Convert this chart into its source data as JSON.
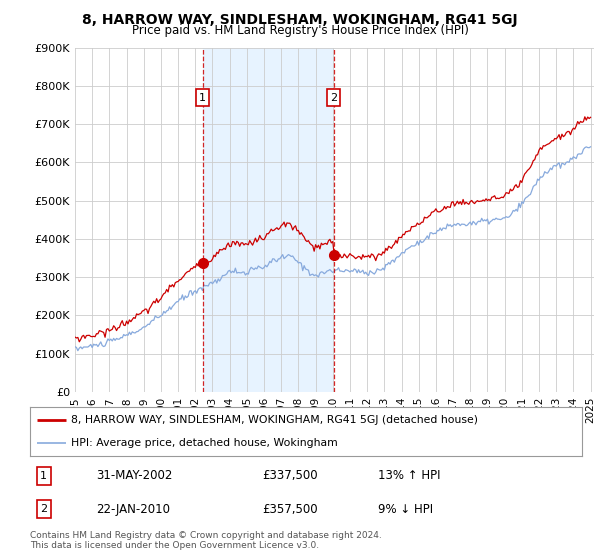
{
  "title": "8, HARROW WAY, SINDLESHAM, WOKINGHAM, RG41 5GJ",
  "subtitle": "Price paid vs. HM Land Registry's House Price Index (HPI)",
  "ylim": [
    0,
    900000
  ],
  "yticks": [
    0,
    100000,
    200000,
    300000,
    400000,
    500000,
    600000,
    700000,
    800000,
    900000
  ],
  "ytick_labels": [
    "£0",
    "£100K",
    "£200K",
    "£300K",
    "£400K",
    "£500K",
    "£600K",
    "£700K",
    "£800K",
    "£900K"
  ],
  "xlim_start": 1995.0,
  "xlim_end": 2025.2,
  "xtick_years": [
    1995,
    1996,
    1997,
    1998,
    1999,
    2000,
    2001,
    2002,
    2003,
    2004,
    2005,
    2006,
    2007,
    2008,
    2009,
    2010,
    2011,
    2012,
    2013,
    2014,
    2015,
    2016,
    2017,
    2018,
    2019,
    2020,
    2021,
    2022,
    2023,
    2024,
    2025
  ],
  "transactions": [
    {
      "label": "1",
      "date": "31-MAY-2002",
      "x": 2002.42,
      "price": 337500,
      "hpi_pct": "13%",
      "hpi_dir": "↑"
    },
    {
      "label": "2",
      "date": "22-JAN-2010",
      "x": 2010.06,
      "price": 357500,
      "hpi_pct": "9%",
      "hpi_dir": "↓"
    }
  ],
  "legend_line1_label": "8, HARROW WAY, SINDLESHAM, WOKINGHAM, RG41 5GJ (detached house)",
  "legend_line1_color": "#cc0000",
  "legend_line2_label": "HPI: Average price, detached house, Wokingham",
  "legend_line2_color": "#88aadd",
  "footer": "Contains HM Land Registry data © Crown copyright and database right 2024.\nThis data is licensed under the Open Government Licence v3.0.",
  "shade_color": "#ddeeff",
  "vline_color": "#cc0000",
  "box_edge_color": "#cc0000",
  "grid_color": "#cccccc"
}
